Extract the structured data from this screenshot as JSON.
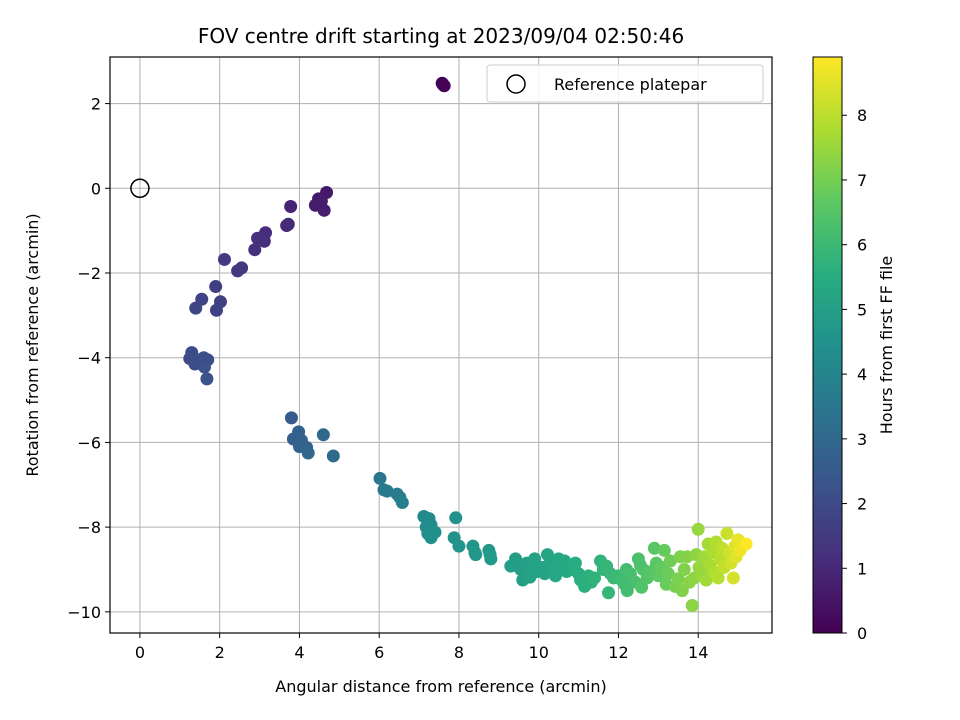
{
  "chart_data": {
    "type": "scatter",
    "title": "FOV centre drift starting at 2023/09/04 02:50:46",
    "xlabel": "Angular distance from reference (arcmin)",
    "ylabel": "Rotation from reference (arcmin)",
    "xlim": [
      -0.75,
      15.85
    ],
    "ylim": [
      -10.5,
      3.1
    ],
    "xticks": [
      0,
      2,
      4,
      6,
      8,
      10,
      12,
      14
    ],
    "yticks": [
      -10,
      -8,
      -6,
      -4,
      -2,
      0,
      2
    ],
    "grid": true,
    "legend": {
      "label": "Reference platepar",
      "placement": "top-right"
    },
    "reference_point": {
      "x": 0,
      "y": 0
    },
    "colorbar": {
      "label": "Hours from first FF file",
      "range": [
        0,
        8.9
      ],
      "ticks": [
        0,
        1,
        2,
        3,
        4,
        5,
        6,
        7,
        8
      ],
      "colormap": "viridis"
    },
    "points": [
      {
        "x": 7.58,
        "y": 2.48,
        "c": 0.0
      },
      {
        "x": 7.63,
        "y": 2.42,
        "c": 0.1
      },
      {
        "x": 7.6,
        "y": 2.45,
        "c": 0.05
      },
      {
        "x": 4.68,
        "y": -0.1,
        "c": 0.6
      },
      {
        "x": 4.48,
        "y": -0.25,
        "c": 0.65
      },
      {
        "x": 4.4,
        "y": -0.4,
        "c": 0.7
      },
      {
        "x": 4.62,
        "y": -0.52,
        "c": 0.75
      },
      {
        "x": 4.55,
        "y": -0.3,
        "c": 0.7
      },
      {
        "x": 3.78,
        "y": -0.43,
        "c": 0.9
      },
      {
        "x": 3.72,
        "y": -0.85,
        "c": 1.0
      },
      {
        "x": 3.68,
        "y": -0.88,
        "c": 1.05
      },
      {
        "x": 3.15,
        "y": -1.05,
        "c": 1.15
      },
      {
        "x": 3.12,
        "y": -1.25,
        "c": 1.2
      },
      {
        "x": 2.95,
        "y": -1.18,
        "c": 1.25
      },
      {
        "x": 2.88,
        "y": -1.45,
        "c": 1.3
      },
      {
        "x": 2.55,
        "y": -1.88,
        "c": 1.45
      },
      {
        "x": 2.45,
        "y": -1.95,
        "c": 1.5
      },
      {
        "x": 2.12,
        "y": -1.68,
        "c": 1.55
      },
      {
        "x": 1.9,
        "y": -2.32,
        "c": 1.65
      },
      {
        "x": 2.02,
        "y": -2.68,
        "c": 1.7
      },
      {
        "x": 1.92,
        "y": -2.88,
        "c": 1.75
      },
      {
        "x": 1.55,
        "y": -2.62,
        "c": 1.8
      },
      {
        "x": 1.4,
        "y": -2.83,
        "c": 1.85
      },
      {
        "x": 1.25,
        "y": -4.02,
        "c": 2.0
      },
      {
        "x": 1.3,
        "y": -3.88,
        "c": 2.05
      },
      {
        "x": 1.45,
        "y": -4.1,
        "c": 2.1
      },
      {
        "x": 1.38,
        "y": -4.15,
        "c": 2.1
      },
      {
        "x": 1.6,
        "y": -4.0,
        "c": 2.15
      },
      {
        "x": 1.7,
        "y": -4.05,
        "c": 2.2
      },
      {
        "x": 1.62,
        "y": -4.22,
        "c": 2.25
      },
      {
        "x": 1.68,
        "y": -4.5,
        "c": 2.3
      },
      {
        "x": 1.52,
        "y": -4.05,
        "c": 2.15
      },
      {
        "x": 3.8,
        "y": -5.42,
        "c": 2.6
      },
      {
        "x": 3.85,
        "y": -5.92,
        "c": 2.7
      },
      {
        "x": 3.98,
        "y": -5.75,
        "c": 2.75
      },
      {
        "x": 4.05,
        "y": -5.95,
        "c": 2.8
      },
      {
        "x": 4.0,
        "y": -6.1,
        "c": 2.85
      },
      {
        "x": 4.18,
        "y": -6.12,
        "c": 2.9
      },
      {
        "x": 4.22,
        "y": -6.25,
        "c": 2.95
      },
      {
        "x": 4.6,
        "y": -5.82,
        "c": 3.0
      },
      {
        "x": 4.85,
        "y": -6.32,
        "c": 3.1
      },
      {
        "x": 6.02,
        "y": -6.85,
        "c": 3.5
      },
      {
        "x": 6.12,
        "y": -7.12,
        "c": 3.6
      },
      {
        "x": 6.2,
        "y": -7.15,
        "c": 3.65
      },
      {
        "x": 6.45,
        "y": -7.22,
        "c": 3.7
      },
      {
        "x": 6.52,
        "y": -7.3,
        "c": 3.75
      },
      {
        "x": 6.58,
        "y": -7.42,
        "c": 3.8
      },
      {
        "x": 7.12,
        "y": -7.75,
        "c": 4.2
      },
      {
        "x": 7.25,
        "y": -7.8,
        "c": 4.25
      },
      {
        "x": 7.3,
        "y": -7.95,
        "c": 4.3
      },
      {
        "x": 7.18,
        "y": -8.0,
        "c": 4.3
      },
      {
        "x": 7.22,
        "y": -8.15,
        "c": 4.35
      },
      {
        "x": 7.3,
        "y": -8.25,
        "c": 4.4
      },
      {
        "x": 7.4,
        "y": -8.12,
        "c": 4.4
      },
      {
        "x": 7.92,
        "y": -7.78,
        "c": 4.5
      },
      {
        "x": 7.88,
        "y": -8.25,
        "c": 4.55
      },
      {
        "x": 8.0,
        "y": -8.45,
        "c": 4.6
      },
      {
        "x": 8.35,
        "y": -8.45,
        "c": 4.65
      },
      {
        "x": 8.4,
        "y": -8.6,
        "c": 4.7
      },
      {
        "x": 8.42,
        "y": -8.65,
        "c": 4.7
      },
      {
        "x": 8.75,
        "y": -8.55,
        "c": 4.75
      },
      {
        "x": 8.8,
        "y": -8.75,
        "c": 4.8
      },
      {
        "x": 8.78,
        "y": -8.65,
        "c": 4.8
      },
      {
        "x": 9.3,
        "y": -8.92,
        "c": 4.9
      },
      {
        "x": 9.42,
        "y": -8.75,
        "c": 4.95
      },
      {
        "x": 9.55,
        "y": -9.0,
        "c": 5.0
      },
      {
        "x": 9.6,
        "y": -9.25,
        "c": 5.0
      },
      {
        "x": 9.7,
        "y": -8.85,
        "c": 5.05
      },
      {
        "x": 9.78,
        "y": -9.18,
        "c": 5.1
      },
      {
        "x": 9.82,
        "y": -8.95,
        "c": 5.1
      },
      {
        "x": 9.9,
        "y": -8.75,
        "c": 5.15
      },
      {
        "x": 9.95,
        "y": -9.05,
        "c": 5.15
      },
      {
        "x": 10.1,
        "y": -8.95,
        "c": 5.2
      },
      {
        "x": 10.15,
        "y": -9.1,
        "c": 5.2
      },
      {
        "x": 10.22,
        "y": -8.65,
        "c": 5.25
      },
      {
        "x": 10.3,
        "y": -8.8,
        "c": 5.25
      },
      {
        "x": 10.35,
        "y": -9.0,
        "c": 5.3
      },
      {
        "x": 10.42,
        "y": -9.15,
        "c": 5.3
      },
      {
        "x": 10.5,
        "y": -8.75,
        "c": 5.35
      },
      {
        "x": 10.55,
        "y": -8.92,
        "c": 5.35
      },
      {
        "x": 10.65,
        "y": -8.8,
        "c": 5.4
      },
      {
        "x": 10.7,
        "y": -9.05,
        "c": 5.4
      },
      {
        "x": 10.85,
        "y": -9.0,
        "c": 5.5
      },
      {
        "x": 10.92,
        "y": -8.85,
        "c": 5.55
      },
      {
        "x": 11.0,
        "y": -9.1,
        "c": 5.6
      },
      {
        "x": 11.05,
        "y": -9.25,
        "c": 5.6
      },
      {
        "x": 11.15,
        "y": -9.4,
        "c": 5.65
      },
      {
        "x": 11.25,
        "y": -9.15,
        "c": 5.7
      },
      {
        "x": 11.32,
        "y": -9.3,
        "c": 5.7
      },
      {
        "x": 11.4,
        "y": -9.2,
        "c": 5.75
      },
      {
        "x": 11.55,
        "y": -8.8,
        "c": 5.8
      },
      {
        "x": 11.62,
        "y": -9.0,
        "c": 5.85
      },
      {
        "x": 11.7,
        "y": -8.92,
        "c": 5.9
      },
      {
        "x": 11.75,
        "y": -9.55,
        "c": 5.9
      },
      {
        "x": 11.8,
        "y": -9.1,
        "c": 5.95
      },
      {
        "x": 11.88,
        "y": -9.2,
        "c": 6.0
      },
      {
        "x": 12.0,
        "y": -9.15,
        "c": 6.05
      },
      {
        "x": 12.08,
        "y": -9.25,
        "c": 6.1
      },
      {
        "x": 12.15,
        "y": -9.35,
        "c": 6.15
      },
      {
        "x": 12.2,
        "y": -9.0,
        "c": 6.2
      },
      {
        "x": 12.22,
        "y": -9.5,
        "c": 6.2
      },
      {
        "x": 12.3,
        "y": -9.1,
        "c": 6.25
      },
      {
        "x": 12.42,
        "y": -9.3,
        "c": 6.3
      },
      {
        "x": 12.5,
        "y": -8.75,
        "c": 6.35
      },
      {
        "x": 12.55,
        "y": -8.9,
        "c": 6.4
      },
      {
        "x": 12.62,
        "y": -9.0,
        "c": 6.4
      },
      {
        "x": 12.58,
        "y": -9.42,
        "c": 6.45
      },
      {
        "x": 12.72,
        "y": -9.2,
        "c": 6.5
      },
      {
        "x": 12.8,
        "y": -9.05,
        "c": 6.55
      },
      {
        "x": 12.9,
        "y": -8.5,
        "c": 6.6
      },
      {
        "x": 12.95,
        "y": -8.85,
        "c": 6.65
      },
      {
        "x": 13.0,
        "y": -9.15,
        "c": 6.7
      },
      {
        "x": 13.08,
        "y": -8.95,
        "c": 6.75
      },
      {
        "x": 13.15,
        "y": -8.55,
        "c": 6.8
      },
      {
        "x": 13.2,
        "y": -9.35,
        "c": 6.85
      },
      {
        "x": 13.25,
        "y": -9.1,
        "c": 6.9
      },
      {
        "x": 13.3,
        "y": -8.8,
        "c": 6.95
      },
      {
        "x": 13.42,
        "y": -9.4,
        "c": 7.05
      },
      {
        "x": 13.5,
        "y": -9.22,
        "c": 7.1
      },
      {
        "x": 13.55,
        "y": -8.7,
        "c": 7.15
      },
      {
        "x": 13.6,
        "y": -9.5,
        "c": 7.2
      },
      {
        "x": 13.65,
        "y": -9.0,
        "c": 7.2
      },
      {
        "x": 13.72,
        "y": -8.7,
        "c": 7.25
      },
      {
        "x": 13.78,
        "y": -9.3,
        "c": 7.3
      },
      {
        "x": 13.85,
        "y": -9.85,
        "c": 7.35
      },
      {
        "x": 13.9,
        "y": -9.2,
        "c": 7.4
      },
      {
        "x": 13.95,
        "y": -8.65,
        "c": 7.4
      },
      {
        "x": 14.0,
        "y": -8.05,
        "c": 7.5
      },
      {
        "x": 14.02,
        "y": -8.95,
        "c": 7.5
      },
      {
        "x": 14.1,
        "y": -9.1,
        "c": 7.55
      },
      {
        "x": 14.15,
        "y": -8.7,
        "c": 7.6
      },
      {
        "x": 14.2,
        "y": -9.25,
        "c": 7.65
      },
      {
        "x": 14.25,
        "y": -8.4,
        "c": 7.7
      },
      {
        "x": 14.3,
        "y": -8.9,
        "c": 7.75
      },
      {
        "x": 14.35,
        "y": -8.6,
        "c": 7.8
      },
      {
        "x": 14.4,
        "y": -9.05,
        "c": 7.85
      },
      {
        "x": 14.45,
        "y": -8.35,
        "c": 7.9
      },
      {
        "x": 14.5,
        "y": -9.2,
        "c": 7.95
      },
      {
        "x": 14.55,
        "y": -8.75,
        "c": 8.0
      },
      {
        "x": 14.6,
        "y": -8.5,
        "c": 8.05
      },
      {
        "x": 14.65,
        "y": -8.95,
        "c": 8.1
      },
      {
        "x": 14.72,
        "y": -8.15,
        "c": 8.2
      },
      {
        "x": 14.78,
        "y": -8.6,
        "c": 8.25
      },
      {
        "x": 14.82,
        "y": -8.85,
        "c": 8.3
      },
      {
        "x": 14.88,
        "y": -9.2,
        "c": 8.35
      },
      {
        "x": 14.92,
        "y": -8.45,
        "c": 8.45
      },
      {
        "x": 14.95,
        "y": -8.7,
        "c": 8.5
      },
      {
        "x": 15.0,
        "y": -8.3,
        "c": 8.6
      },
      {
        "x": 15.05,
        "y": -8.55,
        "c": 8.7
      },
      {
        "x": 15.2,
        "y": -8.4,
        "c": 8.9
      }
    ]
  }
}
